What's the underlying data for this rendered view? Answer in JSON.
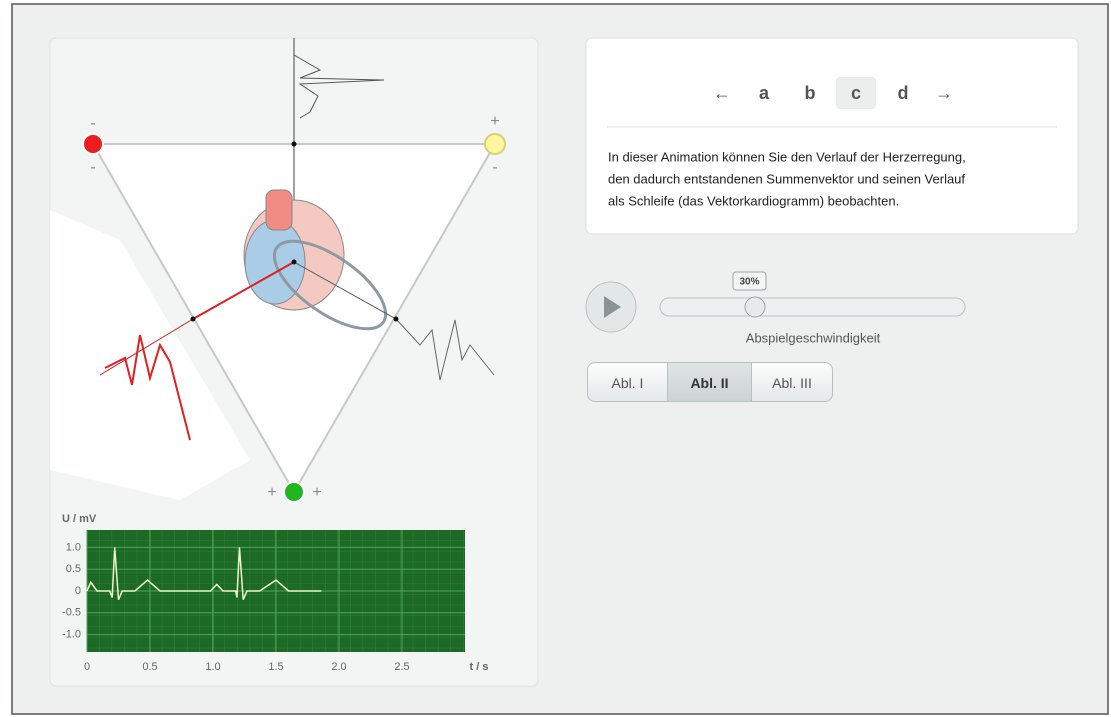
{
  "nav": {
    "prev": "←",
    "items": [
      "a",
      "b",
      "c",
      "d"
    ],
    "next": "→"
  },
  "description": [
    "In dieser Animation können Sie den Verlauf der Herzerregung,",
    "den dadurch entstandenen Summenvektor und seinen Verlauf",
    "als Schleife (das Vektorkardiogramm) beobachten."
  ],
  "slider": {
    "badge": "30%",
    "label": "Abspielgeschwindigkeit"
  },
  "leads": [
    "Abl. I",
    "Abl. II",
    "Abl. III"
  ],
  "electrodes": {
    "red": [
      "-",
      "-"
    ],
    "yellow": [
      "+",
      "-"
    ],
    "green": [
      "+",
      "+"
    ]
  },
  "chart_data": {
    "type": "line",
    "y_label": "U / mV",
    "x_label": "t / s",
    "x": [
      0,
      0.03,
      0.08,
      0.18,
      0.2,
      0.22,
      0.25,
      0.28,
      0.38,
      0.48,
      0.58,
      0.98,
      1.03,
      1.08,
      1.18,
      1.19,
      1.21,
      1.24,
      1.27,
      1.37,
      1.5,
      1.6,
      1.86
    ],
    "values": [
      0,
      0.2,
      0,
      0,
      -0.15,
      1.0,
      -0.2,
      0,
      0,
      0.25,
      0,
      0,
      0.15,
      0,
      0,
      -0.15,
      1.0,
      -0.2,
      0,
      0,
      0.25,
      0,
      0
    ],
    "color": "#eef7c8",
    "xlim": [
      0,
      3
    ],
    "ylim": [
      -1.4,
      1.4
    ],
    "xticks": [
      0,
      0.5,
      {
        "value": 1,
        "label": "1.0"
      },
      1.5,
      {
        "value": 2,
        "label": "2.0"
      },
      2.5
    ],
    "yticks": [
      {
        "value": 1,
        "label": "1.0"
      },
      0.5,
      0,
      -0.5,
      {
        "value": -1,
        "label": "-1.0"
      }
    ],
    "grid": true
  }
}
